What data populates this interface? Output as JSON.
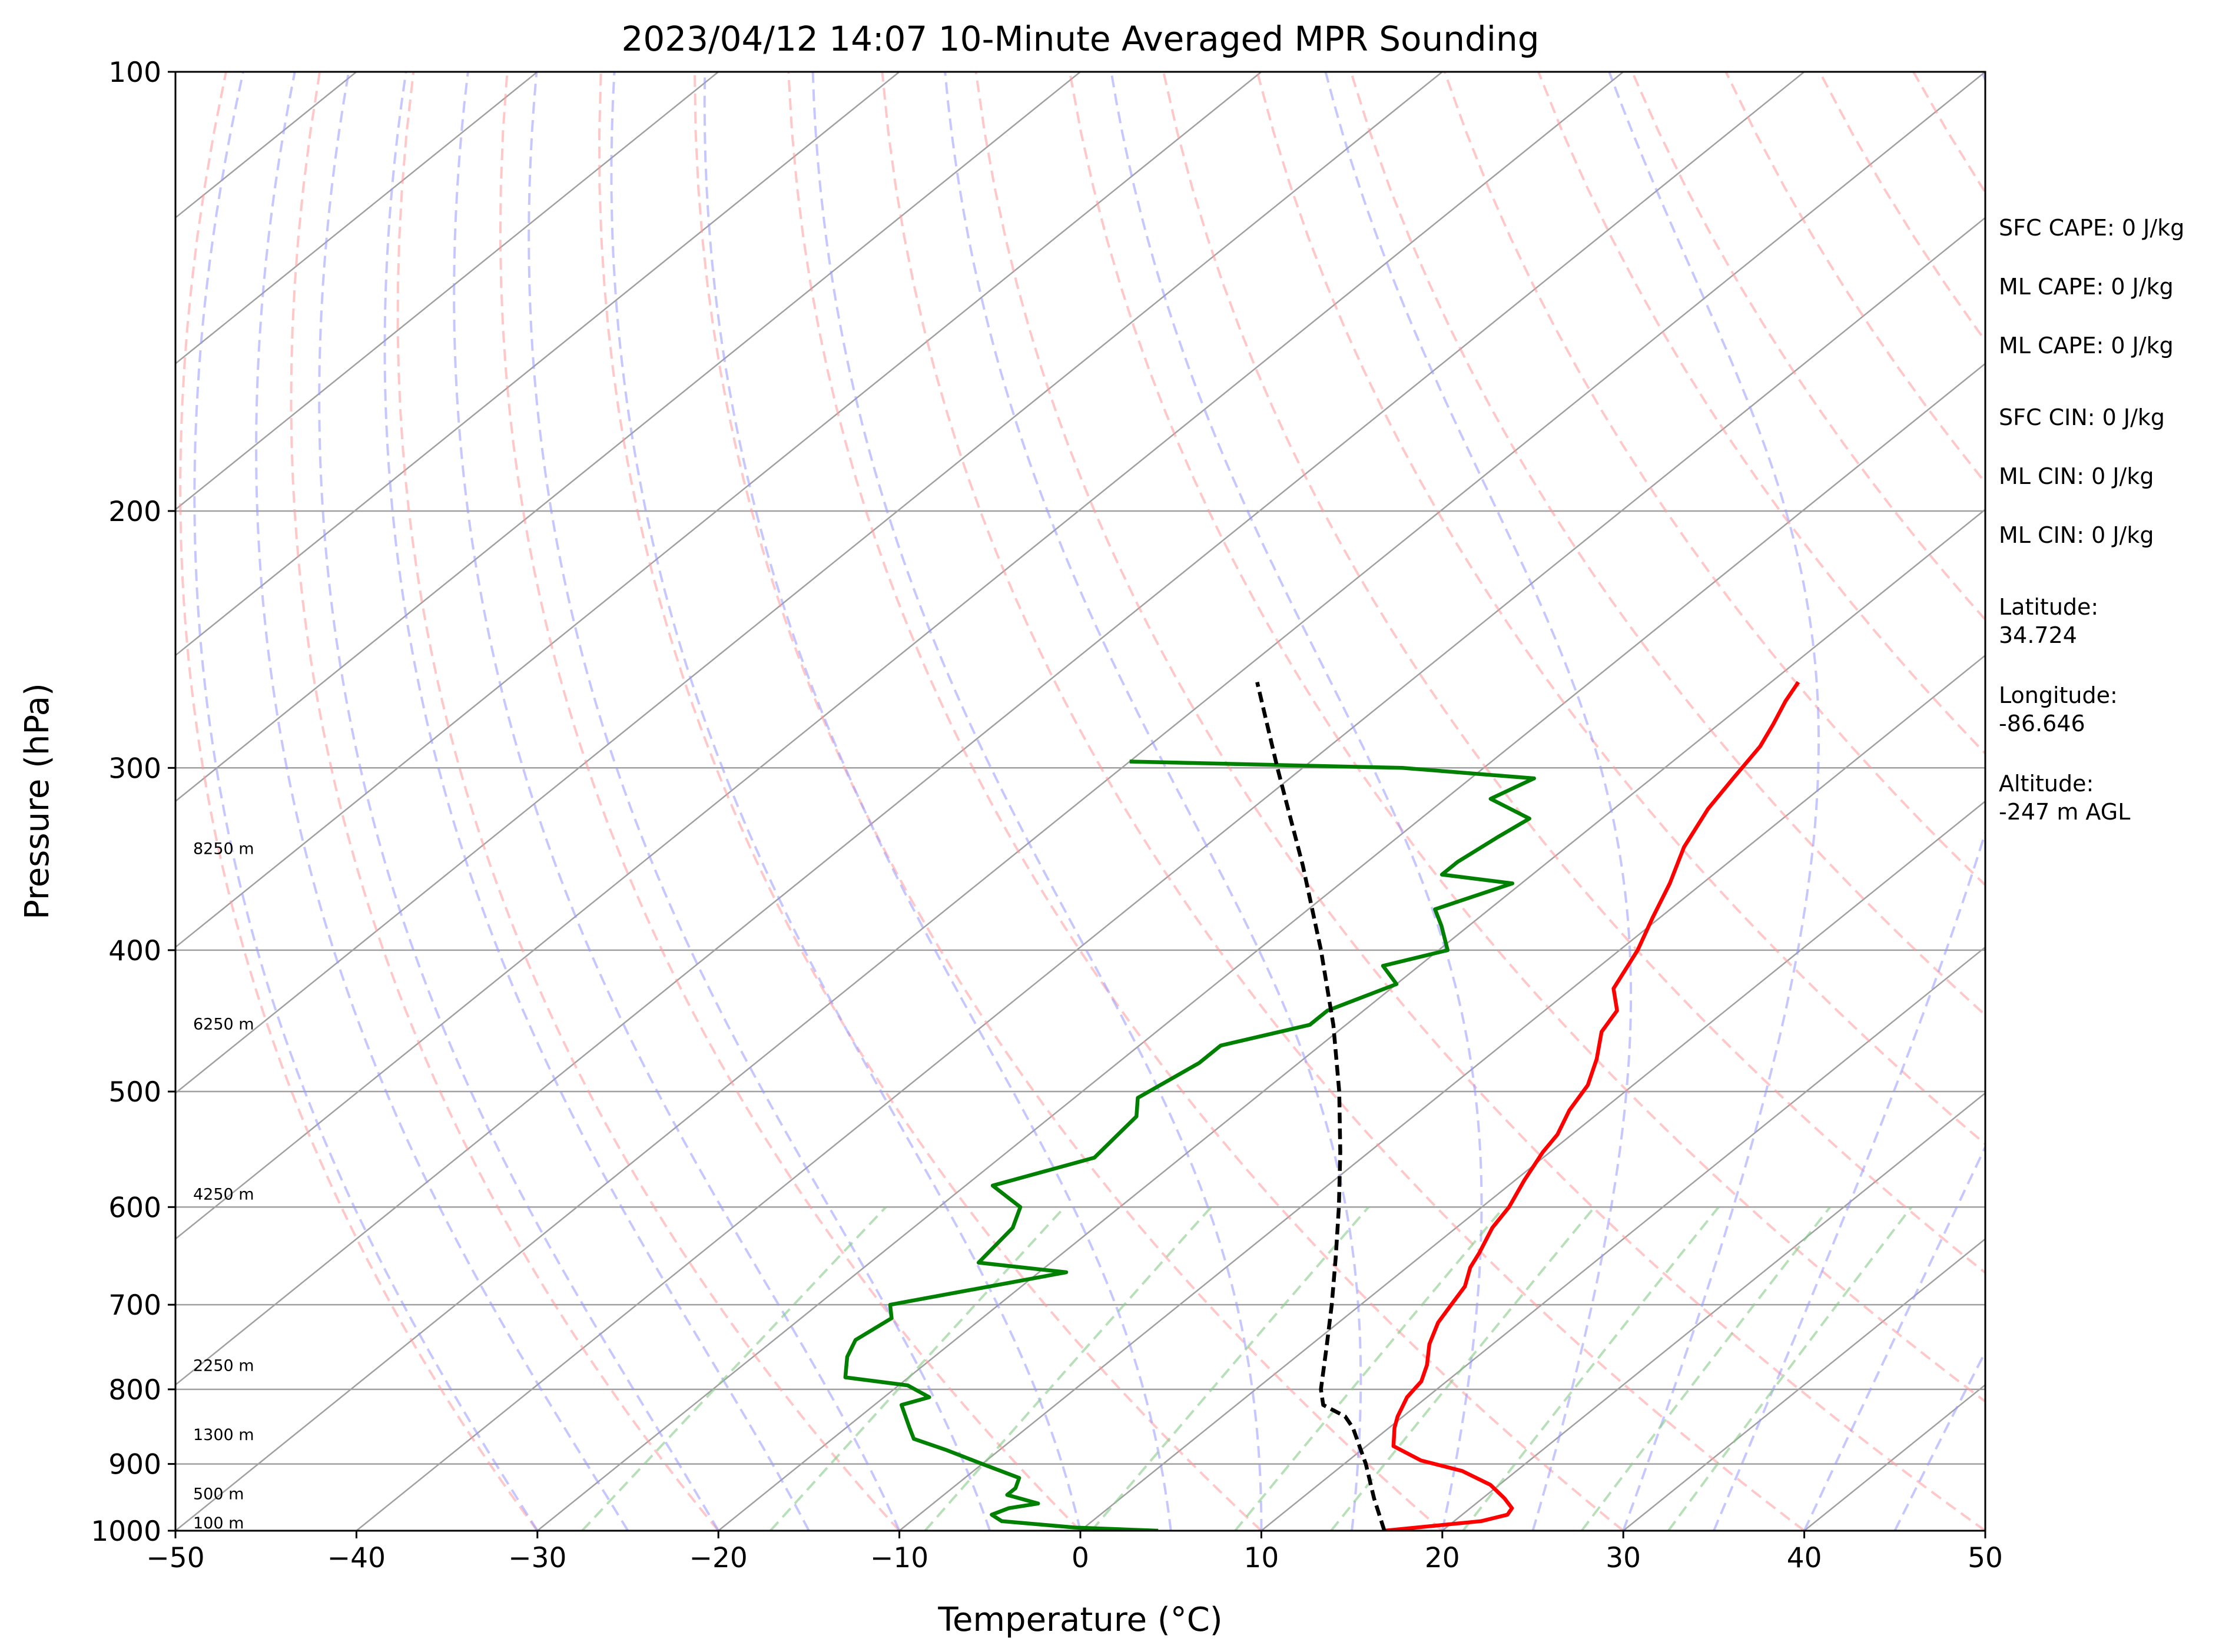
{
  "chart_data": {
    "type": "line",
    "subtype": "skew-t log-p",
    "title": "2023/04/12 14:07 10-Minute Averaged MPR Sounding",
    "xlabel": "Temperature (°C)",
    "ylabel": "Pressure (hPa)",
    "xlim": [
      -50,
      50
    ],
    "ylim": [
      1000,
      100
    ],
    "y_scale": "log",
    "grid": true,
    "x_ticks": [
      "−50",
      "−40",
      "−30",
      "−20",
      "−10",
      "0",
      "10",
      "20",
      "30",
      "40",
      "50"
    ],
    "y_ticks": [
      "100",
      "200",
      "300",
      "400",
      "500",
      "600",
      "700",
      "800",
      "900",
      "1000"
    ],
    "colors": {
      "temperature": "#ff0000",
      "dewpoint": "#008000",
      "parcel": "#000000",
      "isotherm": "#a0a0a0",
      "dry_adiabat": "#ff9999",
      "moist_adiabat": "#9999ff",
      "mixing_ratio": "#88cc88"
    },
    "series": [
      {
        "role": "temperature",
        "points": [
          [
            1000,
            16.8
          ],
          [
            985,
            21.5
          ],
          [
            975,
            22.5
          ],
          [
            965,
            22.3
          ],
          [
            950,
            21.2
          ],
          [
            930,
            19.5
          ],
          [
            910,
            17
          ],
          [
            895,
            14
          ],
          [
            875,
            11.5
          ],
          [
            850,
            10.3
          ],
          [
            835,
            9.7
          ],
          [
            810,
            8.9
          ],
          [
            790,
            8.6
          ],
          [
            770,
            7.8
          ],
          [
            745,
            6.5
          ],
          [
            720,
            5.5
          ],
          [
            700,
            5.0
          ],
          [
            680,
            4.5
          ],
          [
            660,
            3.5
          ],
          [
            645,
            3.0
          ],
          [
            620,
            2.0
          ],
          [
            600,
            1.5
          ],
          [
            575,
            0.5
          ],
          [
            550,
            -0.4
          ],
          [
            535,
            -0.8
          ],
          [
            515,
            -1.8
          ],
          [
            495,
            -2.5
          ],
          [
            475,
            -3.8
          ],
          [
            455,
            -5.4
          ],
          [
            440,
            -6.0
          ],
          [
            425,
            -7.7
          ],
          [
            400,
            -9.0
          ],
          [
            380,
            -10.4
          ],
          [
            360,
            -11.8
          ],
          [
            340,
            -13.5
          ],
          [
            320,
            -14.8
          ],
          [
            305,
            -15.5
          ],
          [
            290,
            -16.2
          ],
          [
            280,
            -17.0
          ],
          [
            270,
            -17.9
          ],
          [
            262,
            -18.5
          ]
        ]
      },
      {
        "role": "dewpoint",
        "points": [
          [
            1000,
            4.3
          ],
          [
            995,
            -0.5
          ],
          [
            985,
            -5.0
          ],
          [
            975,
            -6.0
          ],
          [
            965,
            -5.5
          ],
          [
            958,
            -4.2
          ],
          [
            945,
            -6.5
          ],
          [
            935,
            -6.5
          ],
          [
            920,
            -7.0
          ],
          [
            900,
            -10.0
          ],
          [
            880,
            -13.0
          ],
          [
            865,
            -15.5
          ],
          [
            850,
            -16.5
          ],
          [
            820,
            -18.5
          ],
          [
            810,
            -17.5
          ],
          [
            795,
            -19.5
          ],
          [
            785,
            -23.5
          ],
          [
            760,
            -24.8
          ],
          [
            740,
            -25.5
          ],
          [
            715,
            -25.0
          ],
          [
            700,
            -26.0
          ],
          [
            665,
            -18.5
          ],
          [
            655,
            -24.0
          ],
          [
            620,
            -24.5
          ],
          [
            600,
            -25.5
          ],
          [
            580,
            -28.5
          ],
          [
            555,
            -24.8
          ],
          [
            520,
            -25.3
          ],
          [
            505,
            -26.5
          ],
          [
            478,
            -25.5
          ],
          [
            465,
            -25.5
          ],
          [
            450,
            -22.0
          ],
          [
            440,
            -22.0
          ],
          [
            422,
            -20.0
          ],
          [
            410,
            -22.0
          ],
          [
            400,
            -19.5
          ],
          [
            385,
            -21.5
          ],
          [
            375,
            -23.0
          ],
          [
            360,
            -20.5
          ],
          [
            355,
            -25.0
          ],
          [
            348,
            -25.0
          ],
          [
            335,
            -24.5
          ],
          [
            325,
            -24.0
          ],
          [
            315,
            -27.5
          ],
          [
            305,
            -26.5
          ],
          [
            300,
            -34.5
          ],
          [
            297,
            -50.0
          ]
        ]
      },
      {
        "role": "parcel",
        "points": [
          [
            1000,
            16.8
          ],
          [
            950,
            14.0
          ],
          [
            900,
            11.2
          ],
          [
            850,
            8.0
          ],
          [
            835,
            6.8
          ],
          [
            820,
            4.8
          ],
          [
            800,
            3.6
          ],
          [
            750,
            1.1
          ],
          [
            700,
            -1.6
          ],
          [
            650,
            -4.6
          ],
          [
            600,
            -7.9
          ],
          [
            550,
            -11.6
          ],
          [
            500,
            -15.8
          ],
          [
            450,
            -20.7
          ],
          [
            400,
            -26.5
          ],
          [
            350,
            -33.3
          ],
          [
            300,
            -41.4
          ],
          [
            262,
            -48.4
          ]
        ]
      }
    ],
    "height_labels": [
      {
        "pressure": 1000,
        "text": "100 m"
      },
      {
        "pressure": 955,
        "text": "500 m"
      },
      {
        "pressure": 870,
        "text": "1300 m"
      },
      {
        "pressure": 780,
        "text": "2250 m"
      },
      {
        "pressure": 595,
        "text": "4250 m"
      },
      {
        "pressure": 455,
        "text": "6250 m"
      },
      {
        "pressure": 345,
        "text": "8250 m"
      }
    ],
    "stats": [
      "SFC CAPE: 0 J/kg",
      "ML CAPE: 0 J/kg",
      "ML CAPE: 0 J/kg",
      "SFC CIN: 0 J/kg",
      "ML CIN: 0 J/kg",
      "ML CIN: 0 J/kg",
      "Latitude:\n34.724",
      "Longitude:\n-86.646",
      "Altitude:\n-247 m AGL"
    ]
  }
}
